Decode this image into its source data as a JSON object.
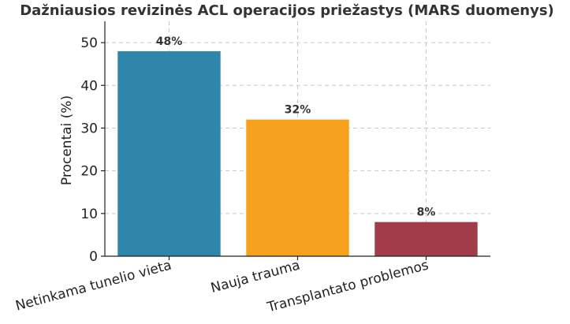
{
  "chart_data": {
    "type": "bar",
    "title": "Dažniausios revizinės ACL operacijos priežastys (MARS duomenys)",
    "ylabel": "Procentai (%)",
    "xlabel": "",
    "categories": [
      "Netinkama tunelio vieta",
      "Nauja trauma",
      "Transplantato problemos"
    ],
    "values": [
      48,
      32,
      8
    ],
    "data_labels": [
      "48%",
      "32%",
      "8%"
    ],
    "colors": [
      "#2e86ab",
      "#f5a11d",
      "#a23b4a"
    ],
    "ylim": [
      0,
      55
    ],
    "yticks": [
      0,
      10,
      20,
      30,
      40,
      50
    ],
    "grid": true,
    "legend": "none"
  }
}
